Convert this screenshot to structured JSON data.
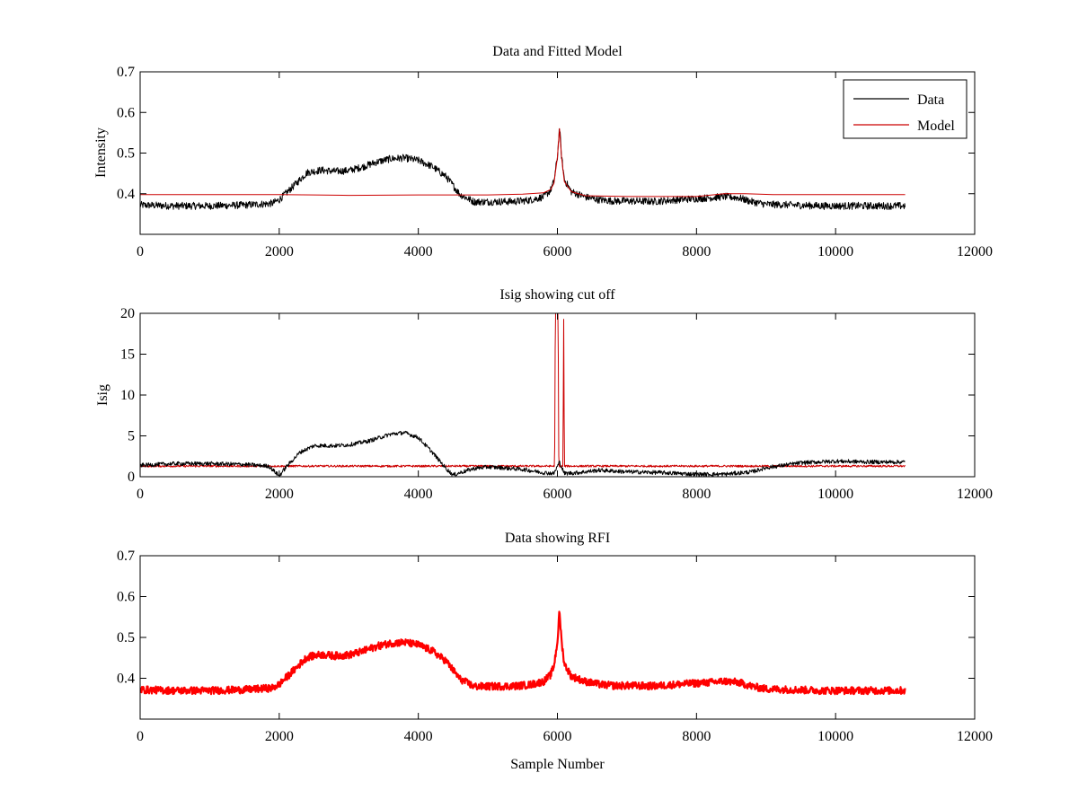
{
  "chart_data": [
    {
      "type": "line",
      "title": "Data and Fitted Model",
      "xlabel": "",
      "ylabel": "Intensity",
      "xlim": [
        0,
        12000
      ],
      "ylim": [
        0.3,
        0.7
      ],
      "xticks": [
        0,
        2000,
        4000,
        6000,
        8000,
        10000,
        12000
      ],
      "yticks": [
        0.4,
        0.5,
        0.6,
        0.7
      ],
      "ytick_labels": [
        "0.4",
        "0.5",
        "0.6",
        "0.7"
      ],
      "grid": false,
      "legend": {
        "placement": "top-right",
        "entries": [
          "Data",
          "Model"
        ]
      },
      "series": [
        {
          "name": "Data",
          "color": "#000000",
          "noise": 0.009,
          "x": [
            0,
            500,
            1000,
            1500,
            1900,
            2000,
            2200,
            2400,
            2600,
            2800,
            3000,
            3200,
            3400,
            3600,
            3800,
            4000,
            4200,
            4400,
            4600,
            4800,
            5000,
            5400,
            5600,
            5800,
            5900,
            5950,
            6000,
            6030,
            6060,
            6100,
            6200,
            6400,
            6600,
            6800,
            7000,
            7400,
            7800,
            8000,
            8200,
            8400,
            8600,
            8800,
            9000,
            9400,
            9800,
            10200,
            10600,
            11000
          ],
          "y": [
            0.372,
            0.37,
            0.37,
            0.372,
            0.376,
            0.385,
            0.418,
            0.452,
            0.458,
            0.455,
            0.457,
            0.466,
            0.478,
            0.486,
            0.488,
            0.482,
            0.467,
            0.442,
            0.398,
            0.38,
            0.38,
            0.381,
            0.384,
            0.392,
            0.408,
            0.43,
            0.49,
            0.565,
            0.49,
            0.435,
            0.405,
            0.392,
            0.385,
            0.382,
            0.382,
            0.381,
            0.386,
            0.388,
            0.39,
            0.393,
            0.39,
            0.38,
            0.374,
            0.372,
            0.37,
            0.37,
            0.37,
            0.37
          ]
        },
        {
          "name": "Model",
          "color": "#cc0000",
          "noise": 0,
          "x": [
            0,
            2000,
            2500,
            3000,
            4000,
            5000,
            5500,
            5800,
            5900,
            5950,
            6000,
            6030,
            6060,
            6100,
            6200,
            6400,
            7000,
            8000,
            8400,
            8700,
            9100,
            9300,
            11000
          ],
          "y": [
            0.398,
            0.398,
            0.397,
            0.396,
            0.397,
            0.397,
            0.399,
            0.402,
            0.41,
            0.425,
            0.49,
            0.56,
            0.49,
            0.43,
            0.405,
            0.395,
            0.393,
            0.393,
            0.4,
            0.4,
            0.398,
            0.398,
            0.398
          ]
        }
      ]
    },
    {
      "type": "line",
      "title": "Isig showing cut off",
      "xlabel": "",
      "ylabel": "Isig",
      "xlim": [
        0,
        12000
      ],
      "ylim": [
        0,
        20
      ],
      "xticks": [
        0,
        2000,
        4000,
        6000,
        8000,
        10000,
        12000
      ],
      "yticks": [
        0,
        5,
        10,
        15,
        20
      ],
      "ytick_labels": [
        "0",
        "5",
        "10",
        "15",
        "20"
      ],
      "grid": false,
      "series": [
        {
          "color": "#cc0000",
          "noise": 0.12,
          "x": [
            0,
            1000,
            1900,
            2000,
            2500,
            3000,
            4000,
            4400,
            4600,
            5000,
            5500,
            5950,
            5960,
            5970,
            6010,
            6020,
            6080,
            6090,
            6100,
            6500,
            7000,
            8000,
            9000,
            10000,
            11000
          ],
          "y": [
            1.3,
            1.3,
            1.3,
            1.3,
            1.3,
            1.3,
            1.3,
            1.3,
            1.3,
            1.3,
            1.3,
            1.3,
            1.3,
            20,
            20,
            1.3,
            1.3,
            20,
            1.3,
            1.3,
            1.3,
            1.3,
            1.3,
            1.3,
            1.3
          ]
        },
        {
          "color": "#000000",
          "noise": 0.25,
          "x": [
            0,
            500,
            1000,
            1500,
            1850,
            1950,
            2000,
            2100,
            2300,
            2500,
            2800,
            3000,
            3300,
            3600,
            3800,
            4000,
            4200,
            4400,
            4500,
            4600,
            4800,
            5000,
            5200,
            5500,
            5800,
            5950,
            6030,
            6100,
            6300,
            6600,
            7000,
            7500,
            8000,
            8400,
            8800,
            9000,
            9500,
            10000,
            10500,
            11000
          ],
          "y": [
            1.4,
            1.6,
            1.6,
            1.5,
            1.3,
            0.5,
            0.1,
            1.2,
            3.0,
            3.8,
            3.8,
            3.9,
            4.4,
            5.2,
            5.4,
            4.8,
            3.0,
            1.0,
            0.2,
            0.5,
            1.0,
            1.2,
            1.1,
            0.9,
            0.5,
            0.4,
            1.8,
            0.4,
            0.5,
            0.8,
            0.6,
            0.5,
            0.3,
            0.3,
            0.6,
            1.1,
            1.7,
            1.9,
            1.8,
            1.8
          ]
        }
      ]
    },
    {
      "type": "line",
      "title": "Data showing RFI",
      "xlabel": "Sample Number",
      "ylabel": "",
      "xlim": [
        0,
        12000
      ],
      "ylim": [
        0.3,
        0.7
      ],
      "xticks": [
        0,
        2000,
        4000,
        6000,
        8000,
        10000,
        12000
      ],
      "yticks": [
        0.4,
        0.5,
        0.6,
        0.7
      ],
      "ytick_labels": [
        "0.4",
        "0.5",
        "0.6",
        "0.7"
      ],
      "grid": false,
      "series": [
        {
          "color": "#ff0000",
          "noise": 0.009,
          "x": [
            0,
            500,
            1000,
            1500,
            1900,
            2000,
            2200,
            2400,
            2600,
            2800,
            3000,
            3200,
            3400,
            3600,
            3800,
            4000,
            4200,
            4400,
            4600,
            4800,
            5000,
            5400,
            5600,
            5800,
            5900,
            5950,
            6000,
            6030,
            6060,
            6100,
            6200,
            6400,
            6600,
            6800,
            7000,
            7400,
            7800,
            8000,
            8200,
            8400,
            8600,
            8800,
            9000,
            9400,
            9800,
            10200,
            10600,
            11000
          ],
          "y": [
            0.372,
            0.37,
            0.37,
            0.372,
            0.376,
            0.385,
            0.418,
            0.452,
            0.458,
            0.455,
            0.457,
            0.466,
            0.478,
            0.486,
            0.488,
            0.482,
            0.467,
            0.442,
            0.398,
            0.38,
            0.38,
            0.381,
            0.384,
            0.392,
            0.408,
            0.43,
            0.49,
            0.565,
            0.49,
            0.435,
            0.405,
            0.392,
            0.385,
            0.382,
            0.382,
            0.381,
            0.386,
            0.388,
            0.39,
            0.393,
            0.39,
            0.38,
            0.374,
            0.372,
            0.37,
            0.37,
            0.37,
            0.37
          ]
        }
      ]
    }
  ]
}
